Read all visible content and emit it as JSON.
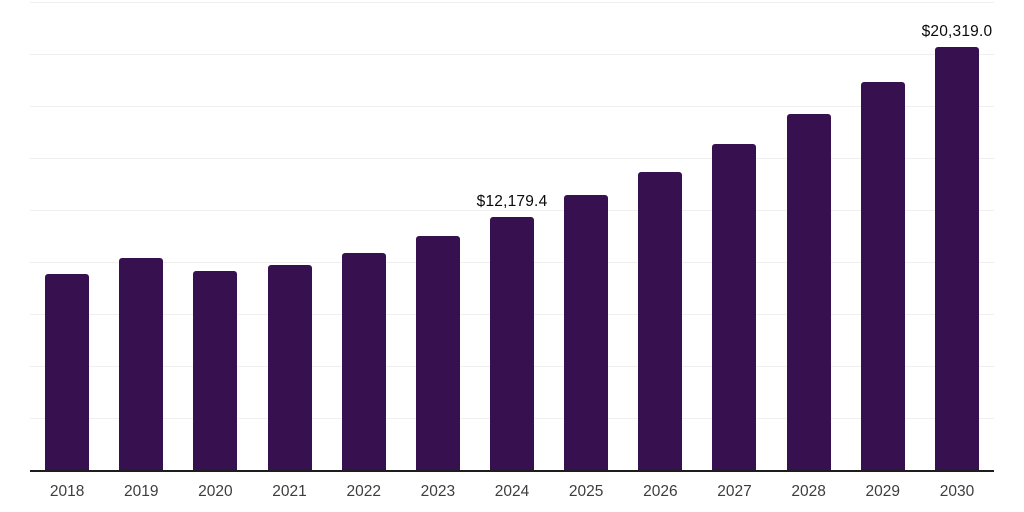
{
  "chart_data": {
    "type": "bar",
    "title": "",
    "xlabel": "",
    "ylabel": "",
    "categories": [
      "2018",
      "2019",
      "2020",
      "2021",
      "2022",
      "2023",
      "2024",
      "2025",
      "2026",
      "2027",
      "2028",
      "2029",
      "2030"
    ],
    "values": [
      9410,
      10190,
      9570,
      9860,
      10450,
      11250,
      12179.4,
      13220,
      14340,
      15660,
      17100,
      18640,
      20319
    ],
    "point_labels": [
      "",
      "",
      "",
      "",
      "",
      "",
      "$12,179.4",
      "",
      "",
      "",
      "",
      "",
      "$20,319.0"
    ],
    "ylim": [
      0,
      22500
    ],
    "gridline_interval": 2500,
    "grid": "horizontal-only",
    "legend": "none",
    "y_tick_labels_visible": false,
    "colors": {
      "bar": "#37114f",
      "axis_line": "#1d1d1d",
      "gridline": "#efefef",
      "data_label": "#0a0a0a",
      "tick_label": "#3d3d3d",
      "background": "#ffffff"
    }
  }
}
